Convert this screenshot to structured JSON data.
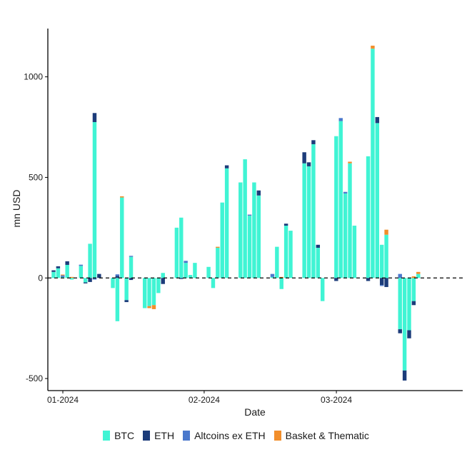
{
  "chart_data": {
    "type": "bar",
    "stacked": true,
    "title": "",
    "xlabel": "Date",
    "ylabel": "mn USD",
    "ylim": [
      -560,
      1240
    ],
    "yticks": [
      -500,
      0,
      500,
      1000
    ],
    "ytick_labels": [
      "-500",
      "0",
      "500",
      "1000"
    ],
    "x_start": "2024-01-01",
    "x_end": "2024-04-01",
    "xticks": [
      {
        "date": "2024-01-01",
        "label": "01-2024"
      },
      {
        "date": "2024-02-01",
        "label": "02-2024"
      },
      {
        "date": "2024-03-01",
        "label": "03-2024"
      }
    ],
    "zero_line": "dashed",
    "grid": false,
    "legend_position": "bottom",
    "series": [
      {
        "name": "BTC",
        "color": "#40F4D4",
        "points": [
          [
            "2024-01-01",
            30
          ],
          [
            "2024-01-02",
            48
          ],
          [
            "2024-01-03",
            5
          ],
          [
            "2024-01-04",
            65
          ],
          [
            "2024-01-05",
            -8
          ],
          [
            "2024-01-07",
            60
          ],
          [
            "2024-01-08",
            -22
          ],
          [
            "2024-01-09",
            170
          ],
          [
            "2024-01-10",
            775
          ],
          [
            "2024-01-11",
            0
          ],
          [
            "2024-01-14",
            -50
          ],
          [
            "2024-01-15",
            -215
          ],
          [
            "2024-01-16",
            400
          ],
          [
            "2024-01-17",
            -110
          ],
          [
            "2024-01-18",
            105
          ],
          [
            "2024-01-21",
            -150
          ],
          [
            "2024-01-22",
            -140
          ],
          [
            "2024-01-23",
            -135
          ],
          [
            "2024-01-24",
            -75
          ],
          [
            "2024-01-25",
            25
          ],
          [
            "2024-01-28",
            250
          ],
          [
            "2024-01-29",
            300
          ],
          [
            "2024-01-30",
            75
          ],
          [
            "2024-01-31",
            15
          ],
          [
            "2024-02-01",
            75
          ],
          [
            "2024-02-04",
            55
          ],
          [
            "2024-02-05",
            -50
          ],
          [
            "2024-02-06",
            150
          ],
          [
            "2024-02-07",
            375
          ],
          [
            "2024-02-08",
            545
          ],
          [
            "2024-02-11",
            475
          ],
          [
            "2024-02-12",
            590
          ],
          [
            "2024-02-13",
            310
          ],
          [
            "2024-02-14",
            475
          ],
          [
            "2024-02-15",
            410
          ],
          [
            "2024-02-18",
            5
          ],
          [
            "2024-02-19",
            155
          ],
          [
            "2024-02-20",
            -55
          ],
          [
            "2024-02-21",
            260
          ],
          [
            "2024-02-22",
            235
          ],
          [
            "2024-02-25",
            570
          ],
          [
            "2024-02-26",
            555
          ],
          [
            "2024-02-27",
            665
          ],
          [
            "2024-02-28",
            150
          ],
          [
            "2024-02-29",
            -115
          ],
          [
            "2024-03-03",
            705
          ],
          [
            "2024-03-04",
            780
          ],
          [
            "2024-03-05",
            420
          ],
          [
            "2024-03-06",
            570
          ],
          [
            "2024-03-07",
            260
          ],
          [
            "2024-03-10",
            605
          ],
          [
            "2024-03-11",
            1140
          ],
          [
            "2024-03-12",
            770
          ],
          [
            "2024-03-13",
            165
          ],
          [
            "2024-03-14",
            215
          ],
          [
            "2024-03-17",
            -255
          ],
          [
            "2024-03-18",
            -460
          ],
          [
            "2024-03-19",
            -260
          ],
          [
            "2024-03-20",
            -115
          ],
          [
            "2024-03-21",
            20
          ]
        ]
      },
      {
        "name": "ETH",
        "color": "#1C3C7A",
        "points": [
          [
            "2024-01-01",
            8
          ],
          [
            "2024-01-02",
            10
          ],
          [
            "2024-01-04",
            18
          ],
          [
            "2024-01-08",
            -5
          ],
          [
            "2024-01-09",
            -20
          ],
          [
            "2024-01-10",
            45
          ],
          [
            "2024-01-11",
            20
          ],
          [
            "2024-01-15",
            10
          ],
          [
            "2024-01-17",
            -10
          ],
          [
            "2024-01-18",
            -10
          ],
          [
            "2024-01-25",
            -30
          ],
          [
            "2024-01-29",
            -5
          ],
          [
            "2024-02-08",
            15
          ],
          [
            "2024-02-15",
            25
          ],
          [
            "2024-02-21",
            10
          ],
          [
            "2024-02-25",
            55
          ],
          [
            "2024-02-26",
            20
          ],
          [
            "2024-02-27",
            20
          ],
          [
            "2024-02-28",
            15
          ],
          [
            "2024-03-03",
            -15
          ],
          [
            "2024-03-10",
            -15
          ],
          [
            "2024-03-12",
            30
          ],
          [
            "2024-03-13",
            -35
          ],
          [
            "2024-03-14",
            -45
          ],
          [
            "2024-03-17",
            -20
          ],
          [
            "2024-03-18",
            -50
          ],
          [
            "2024-03-19",
            -40
          ],
          [
            "2024-03-20",
            -20
          ]
        ]
      },
      {
        "name": "Altcoins ex ETH",
        "color": "#4A78CC",
        "points": [
          [
            "2024-01-03",
            8
          ],
          [
            "2024-01-07",
            6
          ],
          [
            "2024-01-10",
            -8
          ],
          [
            "2024-01-15",
            8
          ],
          [
            "2024-01-18",
            5
          ],
          [
            "2024-01-30",
            10
          ],
          [
            "2024-02-13",
            5
          ],
          [
            "2024-02-18",
            15
          ],
          [
            "2024-03-04",
            15
          ],
          [
            "2024-03-05",
            8
          ],
          [
            "2024-03-13",
            -5
          ],
          [
            "2024-03-17",
            20
          ]
        ]
      },
      {
        "name": "Basket & Thematic",
        "color": "#F28E2B",
        "points": [
          [
            "2024-01-03",
            4
          ],
          [
            "2024-01-05",
            5
          ],
          [
            "2024-01-16",
            6
          ],
          [
            "2024-01-22",
            -10
          ],
          [
            "2024-01-23",
            -20
          ],
          [
            "2024-02-06",
            5
          ],
          [
            "2024-02-20",
            5
          ],
          [
            "2024-03-06",
            8
          ],
          [
            "2024-03-11",
            15
          ],
          [
            "2024-03-14",
            25
          ],
          [
            "2024-03-20",
            8
          ],
          [
            "2024-03-21",
            10
          ]
        ]
      }
    ]
  }
}
